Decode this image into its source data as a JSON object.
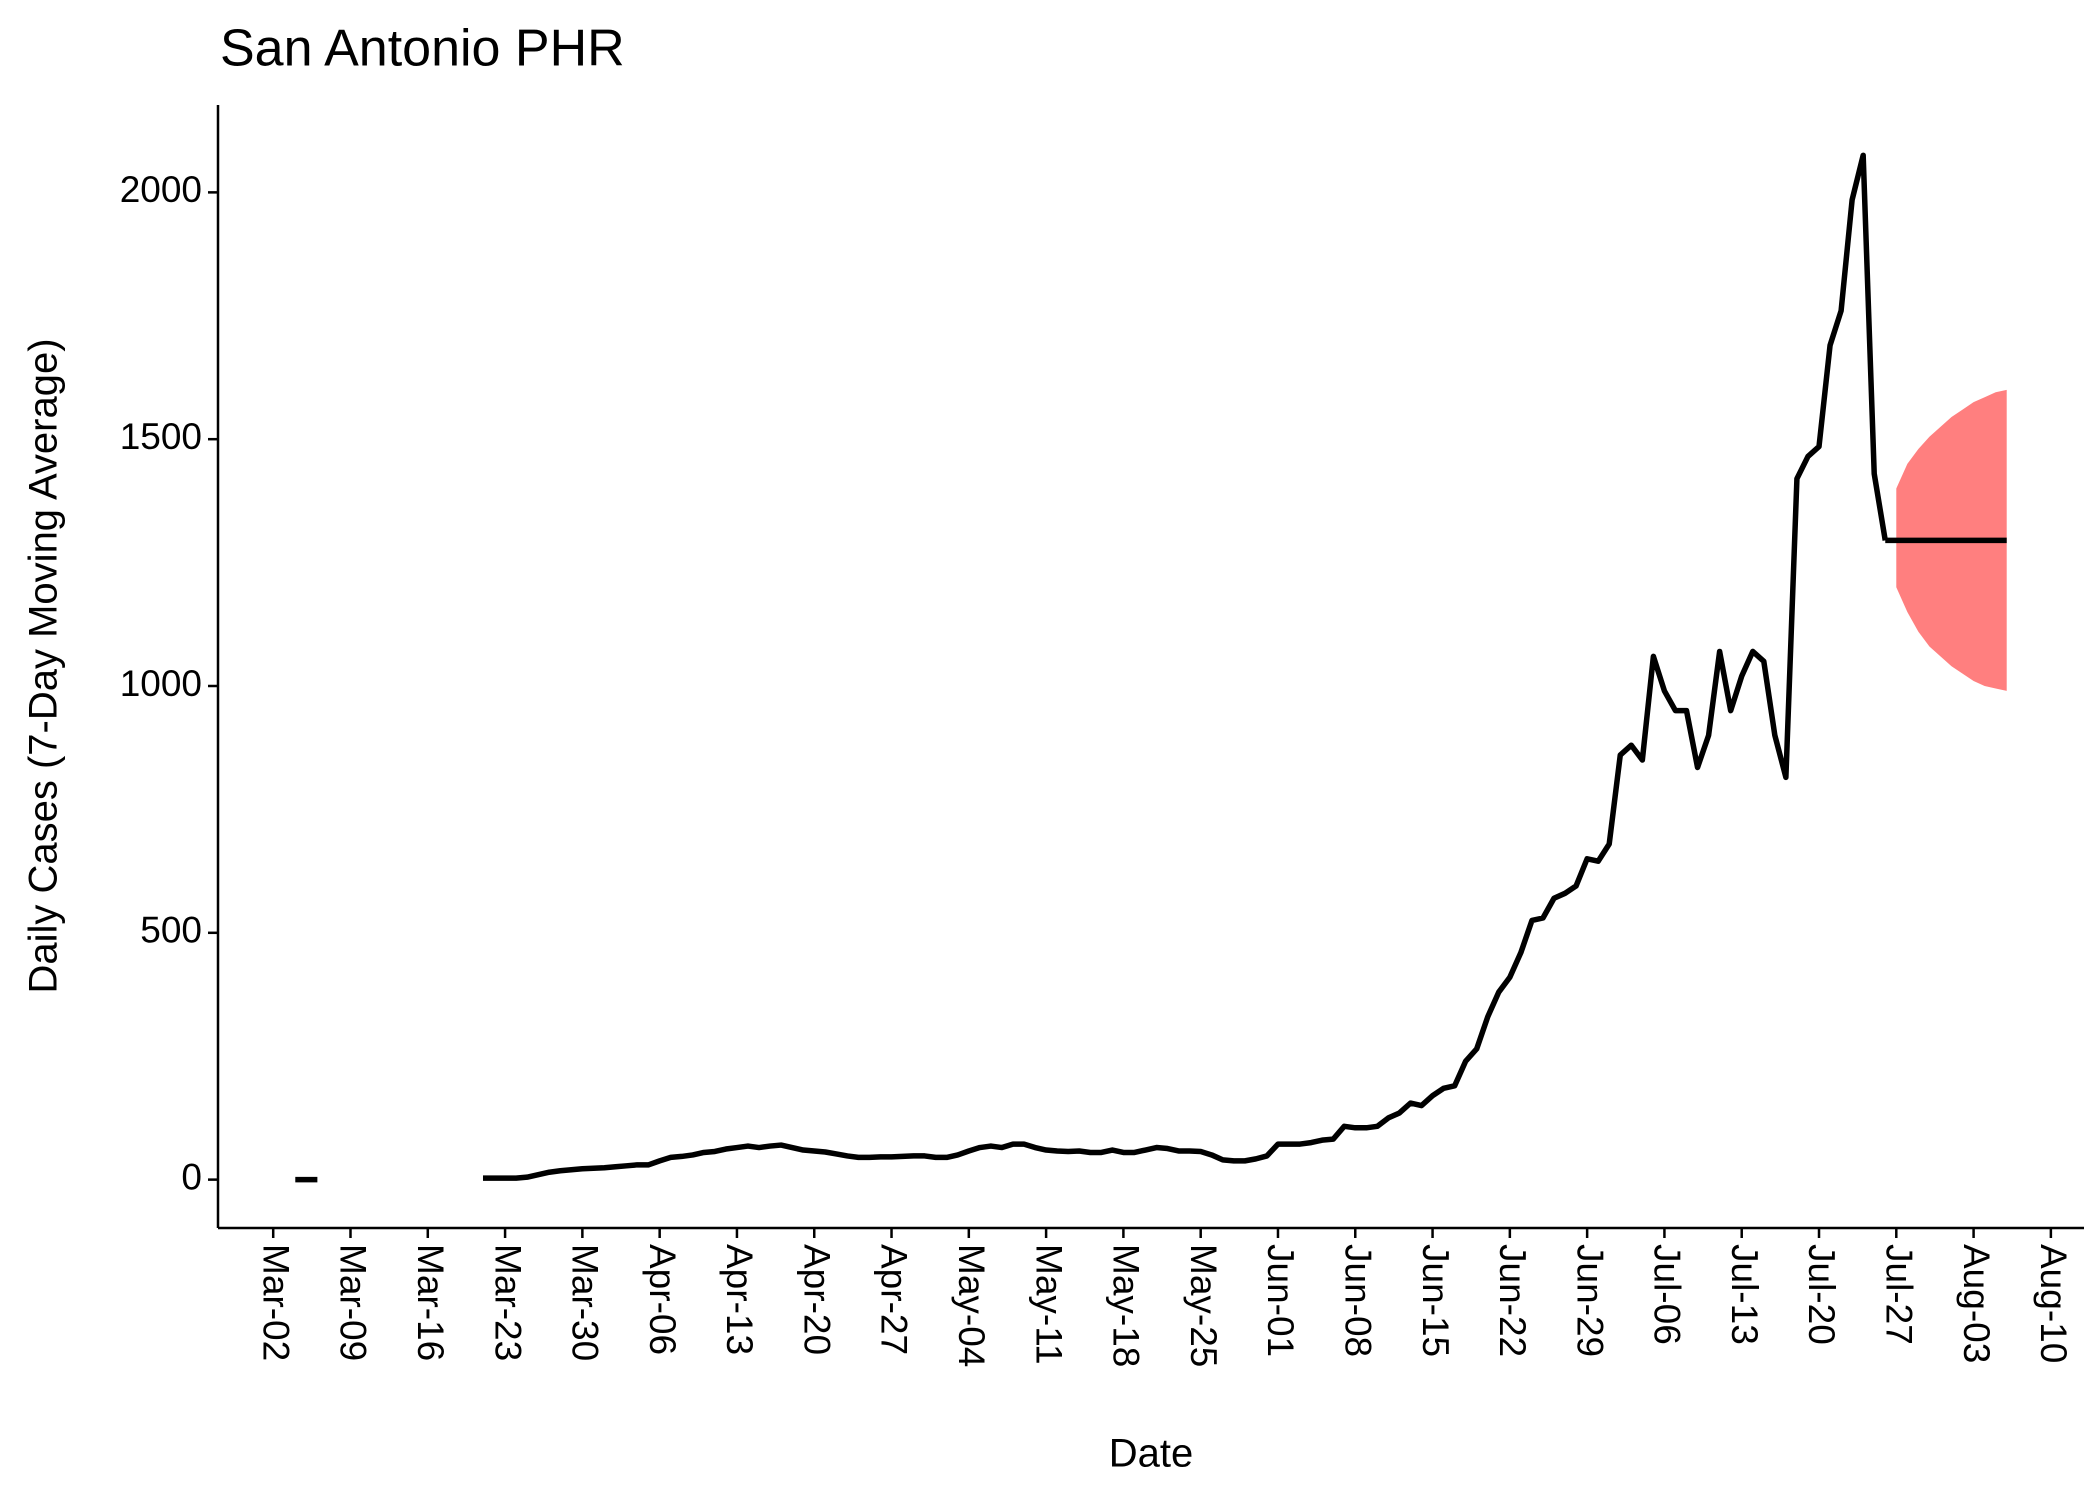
{
  "chart_data": {
    "type": "line",
    "title": "San Antonio PHR",
    "x_label": "Date",
    "y_label": "Daily Cases (7-Day Moving Average)",
    "xlim": [
      "Feb-25",
      "Aug-13"
    ],
    "xticks": [
      "Mar-02",
      "Mar-09",
      "Mar-16",
      "Mar-23",
      "Mar-30",
      "Apr-06",
      "Apr-13",
      "Apr-20",
      "Apr-27",
      "May-04",
      "May-11",
      "May-18",
      "May-25",
      "Jun-01",
      "Jun-08",
      "Jun-15",
      "Jun-22",
      "Jun-29",
      "Jul-06",
      "Jul-13",
      "Jul-20",
      "Jul-27",
      "Aug-03",
      "Aug-10"
    ],
    "ylim": [
      -98,
      2177
    ],
    "yticks": [
      0,
      500,
      1000,
      1500,
      2000
    ],
    "series": [
      {
        "color": "#000000",
        "x": [
          "Mar-04",
          "Mar-05",
          "Mar-06",
          "Mar-07",
          "Mar-21",
          "Mar-22",
          "Mar-23",
          "Mar-24",
          "Mar-25",
          "Mar-26",
          "Mar-27",
          "Mar-28",
          "Mar-29",
          "Mar-30",
          "Mar-31",
          "Apr-01",
          "Apr-02",
          "Apr-03",
          "Apr-04",
          "Apr-05",
          "Apr-06",
          "Apr-07",
          "Apr-08",
          "Apr-09",
          "Apr-10",
          "Apr-11",
          "Apr-12",
          "Apr-13",
          "Apr-14",
          "Apr-15",
          "Apr-16",
          "Apr-17",
          "Apr-18",
          "Apr-19",
          "Apr-20",
          "Apr-21",
          "Apr-22",
          "Apr-23",
          "Apr-24",
          "Apr-25",
          "Apr-26",
          "Apr-27",
          "Apr-28",
          "Apr-29",
          "Apr-30",
          "May-01",
          "May-02",
          "May-03",
          "May-04",
          "May-05",
          "May-06",
          "May-07",
          "May-08",
          "May-09",
          "May-10",
          "May-11",
          "May-12",
          "May-13",
          "May-14",
          "May-15",
          "May-16",
          "May-17",
          "May-18",
          "May-19",
          "May-20",
          "May-21",
          "May-22",
          "May-23",
          "May-24",
          "May-25",
          "May-26",
          "May-27",
          "May-28",
          "May-29",
          "May-30",
          "May-31",
          "Jun-01",
          "Jun-02",
          "Jun-03",
          "Jun-04",
          "Jun-05",
          "Jun-06",
          "Jun-07",
          "Jun-08",
          "Jun-09",
          "Jun-10",
          "Jun-11",
          "Jun-12",
          "Jun-13",
          "Jun-14",
          "Jun-15",
          "Jun-16",
          "Jun-17",
          "Jun-18",
          "Jun-19",
          "Jun-20",
          "Jun-21",
          "Jun-22",
          "Jun-23",
          "Jun-24",
          "Jun-25",
          "Jun-26",
          "Jun-27",
          "Jun-28",
          "Jun-29",
          "Jun-30",
          "Jul-01",
          "Jul-02",
          "Jul-03",
          "Jul-04",
          "Jul-05",
          "Jul-06",
          "Jul-07",
          "Jul-08",
          "Jul-09",
          "Jul-10",
          "Jul-11",
          "Jul-12",
          "Jul-13",
          "Jul-14",
          "Jul-15",
          "Jul-16",
          "Jul-17",
          "Jul-18",
          "Jul-19",
          "Jul-20",
          "Jul-21",
          "Jul-22",
          "Jul-23",
          "Jul-24",
          "Jul-25",
          "Jul-26"
        ],
        "values": [
          0,
          0,
          0,
          null,
          3,
          3,
          3,
          3,
          5,
          10,
          15,
          18,
          20,
          22,
          23,
          24,
          26,
          28,
          30,
          30,
          38,
          45,
          47,
          50,
          55,
          57,
          62,
          65,
          68,
          65,
          68,
          70,
          65,
          60,
          58,
          56,
          52,
          48,
          45,
          45,
          46,
          46,
          47,
          48,
          48,
          45,
          45,
          50,
          58,
          65,
          68,
          65,
          72,
          72,
          65,
          60,
          58,
          57,
          58,
          55,
          55,
          60,
          55,
          55,
          60,
          65,
          63,
          58,
          58,
          57,
          50,
          40,
          38,
          38,
          42,
          48,
          72,
          72,
          72,
          75,
          80,
          82,
          108,
          105,
          105,
          108,
          125,
          135,
          155,
          150,
          170,
          185,
          190,
          240,
          265,
          330,
          380,
          410,
          460,
          525,
          530,
          570,
          580,
          595,
          650,
          645,
          680,
          860,
          880,
          850,
          1060,
          990,
          950,
          950,
          835,
          900,
          1070,
          950,
          1020,
          1070,
          1050,
          900,
          815,
          1420,
          1465,
          1485,
          1690,
          1760,
          1985,
          2075,
          1430,
          1295
        ]
      },
      {
        "color": "#000000",
        "x": [
          "Jul-26",
          "Aug-06"
        ],
        "values": [
          1295,
          1295
        ]
      }
    ],
    "ribbon": {
      "color": "#ff7f7f",
      "x": [
        "Jul-27",
        "Jul-28",
        "Jul-29",
        "Jul-30",
        "Jul-31",
        "Aug-01",
        "Aug-02",
        "Aug-03",
        "Aug-04",
        "Aug-05",
        "Aug-06"
      ],
      "upper": [
        1400,
        1450,
        1480,
        1505,
        1525,
        1545,
        1560,
        1575,
        1585,
        1595,
        1600
      ],
      "lower": [
        1200,
        1150,
        1110,
        1080,
        1060,
        1040,
        1025,
        1010,
        1000,
        995,
        990
      ]
    }
  }
}
